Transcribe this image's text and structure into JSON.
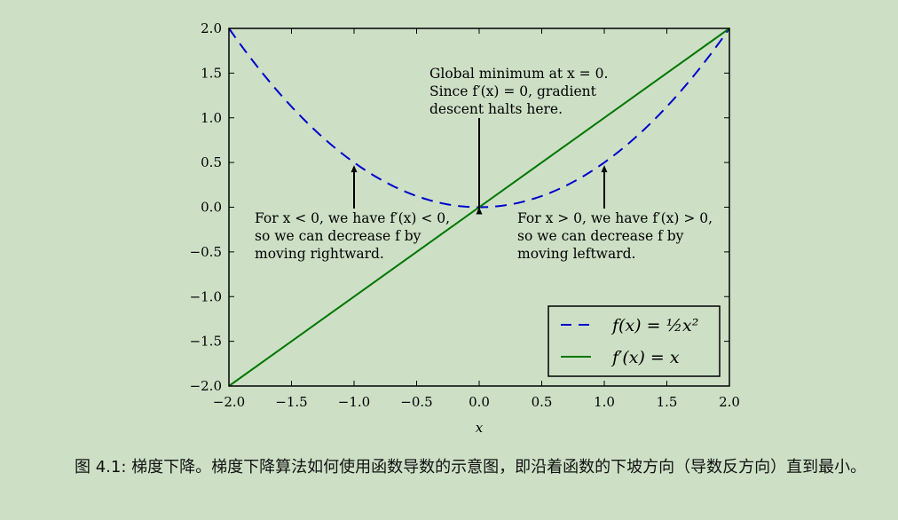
{
  "chart_data": {
    "type": "line",
    "xlabel": "x",
    "xlim": [
      -2.0,
      2.0
    ],
    "ylim": [
      -2.0,
      2.0
    ],
    "xticks": [
      "−2.0",
      "−1.5",
      "−1.0",
      "−0.5",
      "0.0",
      "0.5",
      "1.0",
      "1.5",
      "2.0"
    ],
    "yticks": [
      "2.0",
      "1.5",
      "1.0",
      "0.5",
      "0.0",
      "−0.5",
      "−1.0",
      "−1.5",
      "−2.0"
    ],
    "series": [
      {
        "name": "f(x) = ½x²",
        "style": "dashed",
        "color": "#0000cc",
        "x": [
          -2.0,
          -1.75,
          -1.5,
          -1.25,
          -1.0,
          -0.75,
          -0.5,
          -0.25,
          0.0,
          0.25,
          0.5,
          0.75,
          1.0,
          1.25,
          1.5,
          1.75,
          2.0
        ],
        "y": [
          2.0,
          1.53,
          1.125,
          0.78,
          0.5,
          0.28,
          0.125,
          0.03,
          0.0,
          0.03,
          0.125,
          0.28,
          0.5,
          0.78,
          1.125,
          1.53,
          2.0
        ]
      },
      {
        "name": "f′(x) = x",
        "style": "solid",
        "color": "#007700",
        "x": [
          -2.0,
          2.0
        ],
        "y": [
          -2.0,
          2.0
        ]
      }
    ],
    "annotations": [
      {
        "lines": [
          "Global minimum at x = 0.",
          "Since f′(x) = 0, gradient",
          "descent halts here."
        ],
        "arrow_to": [
          0.0,
          0.0
        ]
      },
      {
        "lines": [
          "For x < 0, we have f′(x) < 0,",
          "so we can decrease f by",
          "moving rightward."
        ],
        "arrow_to": [
          -1.0,
          0.5
        ]
      },
      {
        "lines": [
          "For x > 0, we have f′(x) > 0,",
          "so we can decrease f by",
          "moving leftward."
        ],
        "arrow_to": [
          1.0,
          0.5
        ]
      }
    ],
    "legend_position": "lower-right"
  },
  "caption": "图 4.1: 梯度下降。梯度下降算法如何使用函数导数的示意图，即沿着函数的下坡方向（导数反方向）直到最小。"
}
